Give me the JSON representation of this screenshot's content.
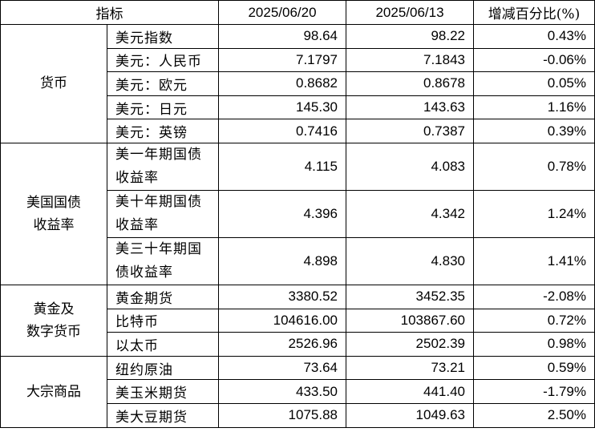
{
  "header": {
    "indicator": "指标",
    "date1": "2025/06/20",
    "date2": "2025/06/13",
    "change": "增减百分比(%)"
  },
  "groups": [
    {
      "label": "货币",
      "rows": [
        {
          "name": "美元指数",
          "v1": "98.64",
          "v2": "98.22",
          "chg": "0.43%"
        },
        {
          "name": "美元：人民币",
          "v1": "7.1797",
          "v2": "7.1843",
          "chg": "-0.06%"
        },
        {
          "name": "美元：欧元",
          "v1": "0.8682",
          "v2": "0.8678",
          "chg": "0.05%"
        },
        {
          "name": "美元：日元",
          "v1": "145.30",
          "v2": "143.63",
          "chg": "1.16%"
        },
        {
          "name": "美元：英镑",
          "v1": "0.7416",
          "v2": "0.7387",
          "chg": "0.39%"
        }
      ]
    },
    {
      "label": "美国国债收益率",
      "rows": [
        {
          "name": "美一年期国债收益率",
          "v1": "4.115",
          "v2": "4.083",
          "chg": "0.78%"
        },
        {
          "name": "美十年期国债收益率",
          "v1": "4.396",
          "v2": "4.342",
          "chg": "1.24%"
        },
        {
          "name": "美三十年期国债收益率",
          "v1": "4.898",
          "v2": "4.830",
          "chg": "1.41%"
        }
      ]
    },
    {
      "label": "黄金及数字货币",
      "rows": [
        {
          "name": "黄金期货",
          "v1": "3380.52",
          "v2": "3452.35",
          "chg": "-2.08%"
        },
        {
          "name": "比特币",
          "v1": "104616.00",
          "v2": "103867.60",
          "chg": "0.72%"
        },
        {
          "name": "以太币",
          "v1": "2526.96",
          "v2": "2502.39",
          "chg": "0.98%"
        }
      ]
    },
    {
      "label": "大宗商品",
      "rows": [
        {
          "name": "纽约原油",
          "v1": "73.64",
          "v2": "73.21",
          "chg": "0.59%"
        },
        {
          "name": "美玉米期货",
          "v1": "433.50",
          "v2": "441.40",
          "chg": "-1.79%"
        },
        {
          "name": "美大豆期货",
          "v1": "1075.88",
          "v2": "1049.63",
          "chg": "2.50%"
        }
      ]
    }
  ]
}
